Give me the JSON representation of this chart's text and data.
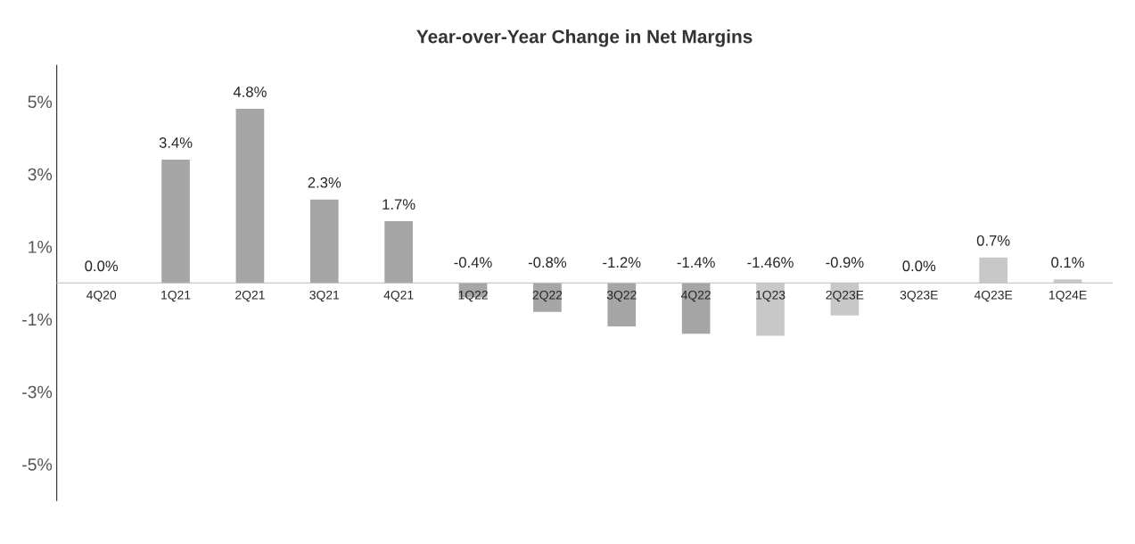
{
  "chart_data": {
    "type": "bar",
    "title": "Year-over-Year Change in Net Margins",
    "categories": [
      "4Q20",
      "1Q21",
      "2Q21",
      "3Q21",
      "4Q21",
      "1Q22",
      "2Q22",
      "3Q22",
      "4Q22",
      "1Q23",
      "2Q23E",
      "3Q23E",
      "4Q23E",
      "1Q24E"
    ],
    "series": [
      {
        "color": "#a6a6a6",
        "values": [
          0.0,
          3.4,
          4.8,
          2.3,
          1.7,
          -0.4,
          -0.8,
          -1.2,
          -1.4,
          null,
          null,
          null,
          null,
          null
        ],
        "value_labels": [
          "0.0%",
          "3.4%",
          "4.8%",
          "2.3%",
          "1.7%",
          "-0.4%",
          "-0.8%",
          "-1.2%",
          "-1.4%",
          null,
          null,
          null,
          null,
          null
        ]
      },
      {
        "color": "#c8c8c8",
        "values": [
          null,
          null,
          null,
          null,
          null,
          null,
          null,
          null,
          null,
          -1.46,
          -0.9,
          0.0,
          0.7,
          0.1
        ],
        "value_labels": [
          null,
          null,
          null,
          null,
          null,
          null,
          null,
          null,
          null,
          "-1.46%",
          "-0.9%",
          "0.0%",
          "0.7%",
          "0.1%"
        ]
      }
    ],
    "ylim": [
      -6,
      6
    ],
    "yticks": [
      {
        "value": 5,
        "label": "5%"
      },
      {
        "value": 3,
        "label": "3%"
      },
      {
        "value": 1,
        "label": "1%"
      },
      {
        "value": -1,
        "label": "-1%"
      },
      {
        "value": -3,
        "label": "-3%"
      },
      {
        "value": -5,
        "label": "-5%"
      }
    ],
    "grid": false,
    "legend": false
  }
}
